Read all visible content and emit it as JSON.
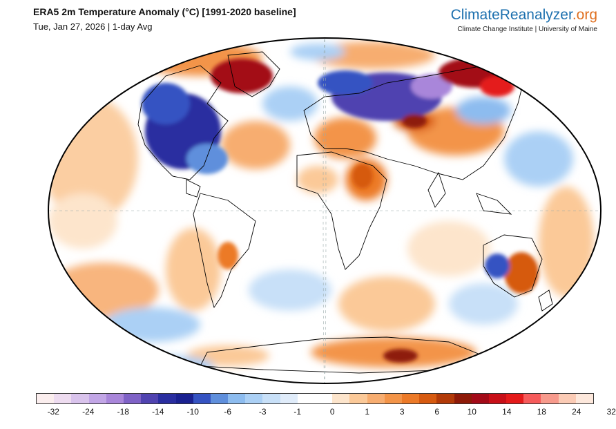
{
  "header": {
    "title": "ERA5 2m Temperature Anomaly (°C) [1991-2020 baseline]",
    "subtitle": "Tue, Jan 27, 2026 | 1-day Avg"
  },
  "brand": {
    "name_part1": "ClimateReanalyzer",
    "name_part2": ".org",
    "tagline": "Climate Change Institute | University of Maine"
  },
  "colorbar": {
    "colors": [
      "#fbeeee",
      "#eedcf0",
      "#d9c3ec",
      "#c2a6e6",
      "#a986da",
      "#7f62c6",
      "#5043b0",
      "#2a2ea0",
      "#1a2190",
      "#3553c2",
      "#5f8fdc",
      "#8dbcef",
      "#abd0f5",
      "#c8e0f8",
      "#e0ecfa",
      "#ffffff",
      "#ffffff",
      "#fde5cc",
      "#fbc998",
      "#f7ad70",
      "#f39448",
      "#ec7a28",
      "#d65a10",
      "#b23a08",
      "#8e1a08",
      "#a30a18",
      "#c80f18",
      "#e41a1a",
      "#f65b5b",
      "#f79a8c",
      "#fbcbb5",
      "#fde8dc"
    ],
    "tick_labels": [
      "-32",
      "-24",
      "-18",
      "-14",
      "-10",
      "-6",
      "-3",
      "-1",
      "0",
      "1",
      "3",
      "6",
      "10",
      "14",
      "18",
      "24",
      "32"
    ]
  },
  "map": {
    "projection": "Winkel Tripel",
    "continent_outline_color": "#000000",
    "features": [
      {
        "name": "north-america-cold",
        "color": "#2a2ea0"
      },
      {
        "name": "siberia-cold",
        "color": "#5043b0"
      },
      {
        "name": "greenland-warm",
        "color": "#a30a18"
      },
      {
        "name": "east-siberia-warm",
        "color": "#a30a18"
      },
      {
        "name": "australia-warm",
        "color": "#d65a10"
      },
      {
        "name": "antarctica-warm",
        "color": "#d65a10"
      }
    ]
  }
}
